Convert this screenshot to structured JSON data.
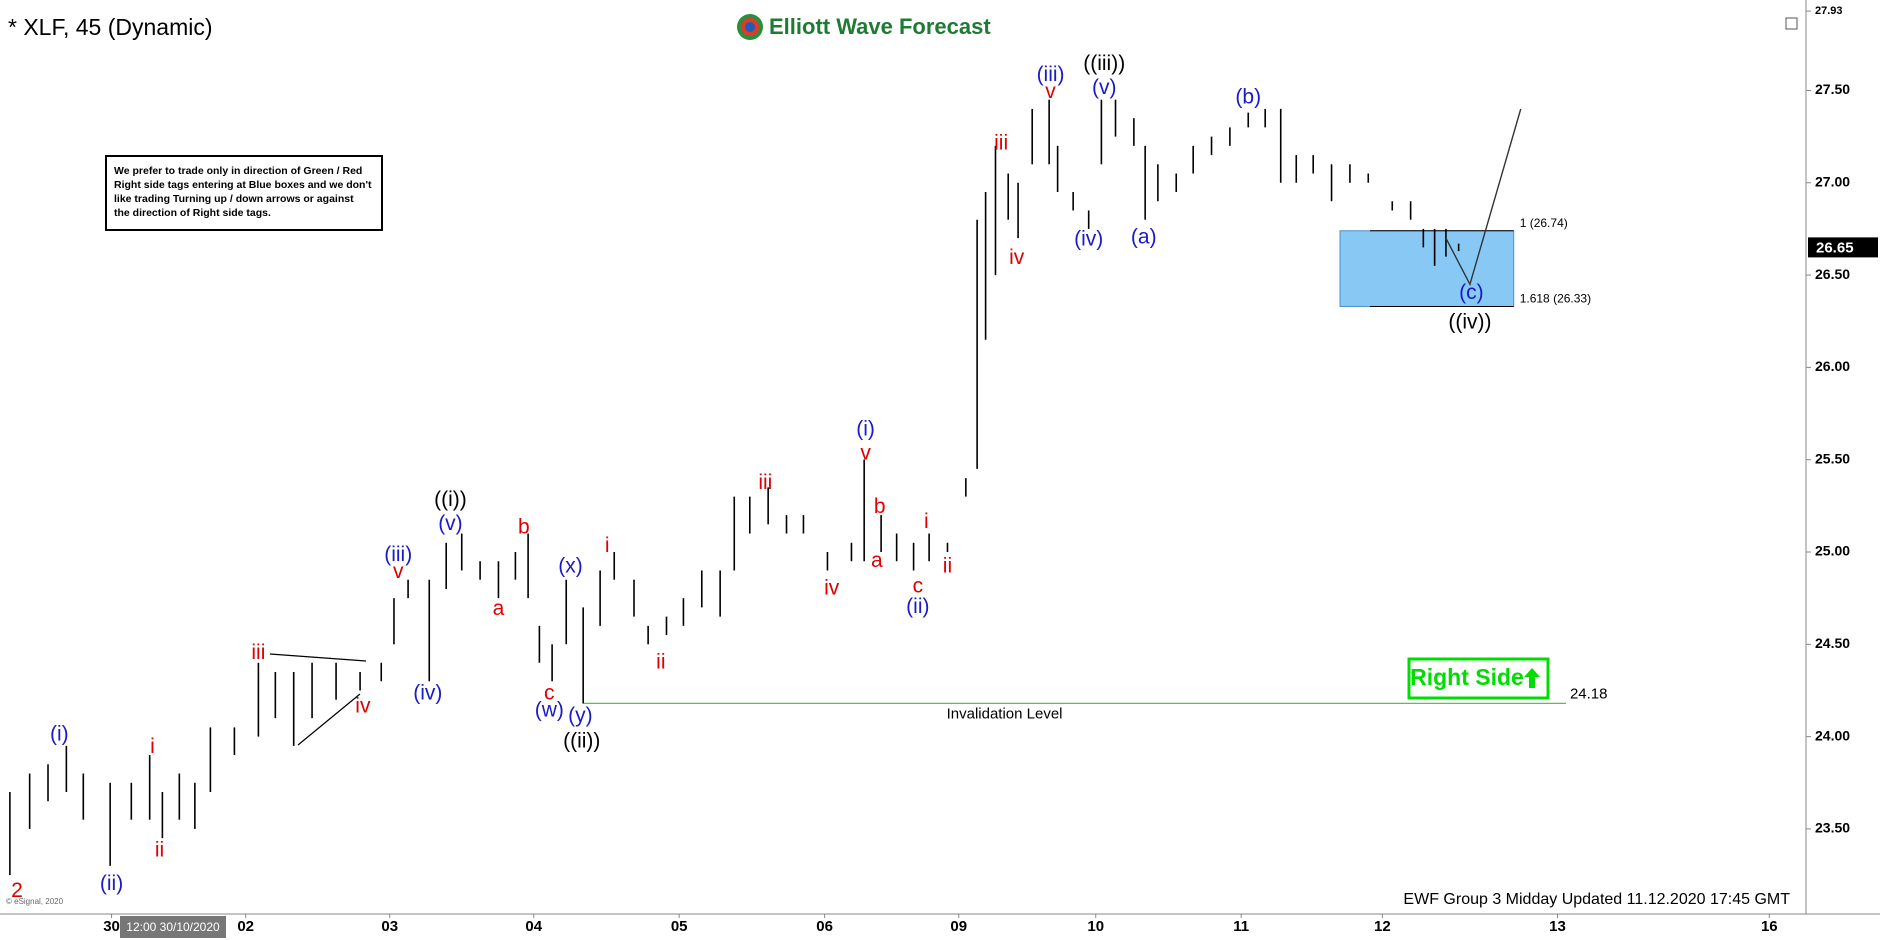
{
  "chart_data": {
    "type": "ohlc",
    "title": "* XLF, 45 (Dynamic)",
    "brand": "Elliott Wave Forecast",
    "color": "#000000",
    "x": [
      -0.72,
      -0.58,
      -0.45,
      -0.32,
      -0.2,
      -0.01,
      0.14,
      0.27,
      0.36,
      0.48,
      0.59,
      0.7,
      0.87,
      1.04,
      1.16,
      1.29,
      1.42,
      1.59,
      1.76,
      1.91,
      2.0,
      2.1,
      2.25,
      2.37,
      2.48,
      2.61,
      2.74,
      2.86,
      2.95,
      3.03,
      3.12,
      3.22,
      3.34,
      3.46,
      3.56,
      3.7,
      3.8,
      3.93,
      4.05,
      4.18,
      4.31,
      4.41,
      4.52,
      4.65,
      4.78,
      4.9,
      5.07,
      5.24,
      5.33,
      5.45,
      5.56,
      5.68,
      5.79,
      5.92,
      6.05,
      6.13,
      6.19,
      6.26,
      6.35,
      6.42,
      6.52,
      6.64,
      6.7,
      6.81,
      6.92,
      7.01,
      7.11,
      7.24,
      7.32,
      7.41,
      7.54,
      7.66,
      7.79,
      7.92,
      8.05,
      8.17,
      8.28,
      8.39,
      8.51,
      8.64,
      8.77,
      8.9,
      9.07,
      9.2,
      9.29,
      9.37,
      9.45,
      9.54
    ],
    "high": [
      23.7,
      23.8,
      23.85,
      23.95,
      23.8,
      23.75,
      23.75,
      23.9,
      23.7,
      23.8,
      23.75,
      24.05,
      24.05,
      24.4,
      24.35,
      24.35,
      24.4,
      24.4,
      24.35,
      24.4,
      24.75,
      24.85,
      24.85,
      25.05,
      25.1,
      24.95,
      24.95,
      25.0,
      25.1,
      24.6,
      24.5,
      24.85,
      24.7,
      24.9,
      25.0,
      24.85,
      24.6,
      24.65,
      24.75,
      24.9,
      24.9,
      25.3,
      25.3,
      25.35,
      25.2,
      25.2,
      25.0,
      25.05,
      25.5,
      25.2,
      25.1,
      25.05,
      25.1,
      25.05,
      25.4,
      26.8,
      26.95,
      27.2,
      27.05,
      27.0,
      27.4,
      27.45,
      27.2,
      26.95,
      26.85,
      27.45,
      27.45,
      27.35,
      27.2,
      27.1,
      27.05,
      27.2,
      27.25,
      27.3,
      27.38,
      27.4,
      27.4,
      27.15,
      27.15,
      27.1,
      27.1,
      27.05,
      26.9,
      26.9,
      26.75,
      26.75,
      26.75,
      26.67
    ],
    "low": [
      23.25,
      23.5,
      23.65,
      23.7,
      23.55,
      23.3,
      23.55,
      23.55,
      23.45,
      23.55,
      23.5,
      23.7,
      23.9,
      24.0,
      24.1,
      23.95,
      24.1,
      24.2,
      24.25,
      24.3,
      24.5,
      24.75,
      24.3,
      24.8,
      24.9,
      24.85,
      24.75,
      24.85,
      24.75,
      24.4,
      24.3,
      24.5,
      24.18,
      24.6,
      24.85,
      24.65,
      24.5,
      24.55,
      24.6,
      24.7,
      24.65,
      24.9,
      25.1,
      25.15,
      25.1,
      25.1,
      24.9,
      24.95,
      24.95,
      25.0,
      24.95,
      24.9,
      24.95,
      25.0,
      25.3,
      25.45,
      26.15,
      26.5,
      26.8,
      26.7,
      27.1,
      27.1,
      26.95,
      26.85,
      26.75,
      27.1,
      27.25,
      27.2,
      26.8,
      26.9,
      26.95,
      27.05,
      27.15,
      27.2,
      27.3,
      27.3,
      27.0,
      27.0,
      27.05,
      26.9,
      27.0,
      27.0,
      26.85,
      26.8,
      26.65,
      26.55,
      26.6,
      26.63
    ],
    "xlim": [
      -0.79,
      12.0
    ],
    "ylim": [
      23.05,
      27.99
    ],
    "xticks": [
      {
        "value": 0,
        "label": "30"
      },
      {
        "value": 0.95,
        "label": "02"
      },
      {
        "value": 1.97,
        "label": "03"
      },
      {
        "value": 2.99,
        "label": "04"
      },
      {
        "value": 4.02,
        "label": "05"
      },
      {
        "value": 5.05,
        "label": "06"
      },
      {
        "value": 6,
        "label": "09"
      },
      {
        "value": 6.97,
        "label": "10"
      },
      {
        "value": 8,
        "label": "11"
      },
      {
        "value": 9,
        "label": "12"
      },
      {
        "value": 10.24,
        "label": "13"
      },
      {
        "value": 11.74,
        "label": "16"
      }
    ],
    "yticks": [
      {
        "value": 23.5,
        "label": "23.50"
      },
      {
        "value": 24,
        "label": "24.00"
      },
      {
        "value": 24.5,
        "label": "24.50"
      },
      {
        "value": 25,
        "label": "25.00"
      },
      {
        "value": 25.5,
        "label": "25.50"
      },
      {
        "value": 26,
        "label": "26.00"
      },
      {
        "value": 26.5,
        "label": "26.50"
      },
      {
        "value": 27,
        "label": "27.00"
      },
      {
        "value": 27.5,
        "label": "27.50"
      },
      27.93
    ],
    "last_price": 26.65,
    "crosshair_label": "12:00 30/10/2020",
    "annotations": [
      {
        "text": "2",
        "x": -0.67,
        "y": 23.16,
        "color": "#e00000"
      },
      {
        "text": "(i)",
        "x": -0.37,
        "y": 24.01,
        "color": "#1a1ac8"
      },
      {
        "text": "(ii)",
        "x": 0,
        "y": 23.2,
        "color": "#1a1ac8"
      },
      {
        "text": "i",
        "x": 0.29,
        "y": 23.94,
        "color": "#e00000"
      },
      {
        "text": "ii",
        "x": 0.34,
        "y": 23.38,
        "color": "#e00000"
      },
      {
        "text": "iii",
        "x": 1.04,
        "y": 24.45,
        "color": "#e00000"
      },
      {
        "text": "iv",
        "x": 1.78,
        "y": 24.16,
        "color": "#e00000"
      },
      {
        "text": "(iii)",
        "x": 2.03,
        "y": 24.98,
        "color": "#1a1ac8"
      },
      {
        "text": "v",
        "x": 2.03,
        "y": 24.89,
        "color": "#e00000"
      },
      {
        "text": "((i))",
        "x": 2.4,
        "y": 25.28,
        "color": "#000000"
      },
      {
        "text": "(v)",
        "x": 2.4,
        "y": 25.15,
        "color": "#1a1ac8"
      },
      {
        "text": "(iv)",
        "x": 2.24,
        "y": 24.23,
        "color": "#1a1ac8"
      },
      {
        "text": "b",
        "x": 2.92,
        "y": 25.13,
        "color": "#e00000"
      },
      {
        "text": "a",
        "x": 2.74,
        "y": 24.69,
        "color": "#e00000"
      },
      {
        "text": "c",
        "x": 3.1,
        "y": 24.23,
        "color": "#e00000"
      },
      {
        "text": "(w)",
        "x": 3.1,
        "y": 24.14,
        "color": "#1a1ac8"
      },
      {
        "text": "(x)",
        "x": 3.25,
        "y": 24.92,
        "color": "#1a1ac8"
      },
      {
        "text": "(y)",
        "x": 3.32,
        "y": 24.11,
        "color": "#1a1ac8"
      },
      {
        "text": "((ii))",
        "x": 3.33,
        "y": 23.97,
        "color": "#000000"
      },
      {
        "text": "i",
        "x": 3.51,
        "y": 25.03,
        "color": "#e00000"
      },
      {
        "text": "ii",
        "x": 3.89,
        "y": 24.4,
        "color": "#e00000"
      },
      {
        "text": "iii",
        "x": 4.63,
        "y": 25.37,
        "color": "#e00000"
      },
      {
        "text": "iv",
        "x": 5.1,
        "y": 24.8,
        "color": "#e00000"
      },
      {
        "text": "(i)",
        "x": 5.34,
        "y": 25.66,
        "color": "#1a1ac8"
      },
      {
        "text": "v",
        "x": 5.34,
        "y": 25.53,
        "color": "#e00000"
      },
      {
        "text": "b",
        "x": 5.44,
        "y": 25.24,
        "color": "#e00000"
      },
      {
        "text": "a",
        "x": 5.42,
        "y": 24.95,
        "color": "#e00000"
      },
      {
        "text": "c",
        "x": 5.71,
        "y": 24.81,
        "color": "#e00000"
      },
      {
        "text": "(ii)",
        "x": 5.71,
        "y": 24.7,
        "color": "#1a1ac8"
      },
      {
        "text": "i",
        "x": 5.77,
        "y": 25.16,
        "color": "#e00000"
      },
      {
        "text": "ii",
        "x": 5.92,
        "y": 24.92,
        "color": "#e00000"
      },
      {
        "text": "iii",
        "x": 6.3,
        "y": 27.21,
        "color": "#e00000"
      },
      {
        "text": "iv",
        "x": 6.41,
        "y": 26.59,
        "color": "#e00000"
      },
      {
        "text": "(iii)",
        "x": 6.65,
        "y": 27.58,
        "color": "#1a1ac8"
      },
      {
        "text": "v",
        "x": 6.65,
        "y": 27.49,
        "color": "#e00000"
      },
      {
        "text": "((iii))",
        "x": 7.03,
        "y": 27.64,
        "color": "#000000"
      },
      {
        "text": "(v)",
        "x": 7.03,
        "y": 27.51,
        "color": "#1a1ac8"
      },
      {
        "text": "(iv)",
        "x": 6.92,
        "y": 26.69,
        "color": "#1a1ac8"
      },
      {
        "text": "(a)",
        "x": 7.31,
        "y": 26.7,
        "color": "#1a1ac8"
      },
      {
        "text": "(b)",
        "x": 8.05,
        "y": 27.46,
        "color": "#1a1ac8"
      },
      {
        "text": "(c)",
        "x": 9.63,
        "y": 26.4,
        "color": "#1a1ac8"
      },
      {
        "text": "((iv))",
        "x": 9.62,
        "y": 26.24,
        "color": "#000000"
      }
    ],
    "note": [
      "We prefer to trade only in direction of Green / Red",
      "Right side tags entering at Blue boxes and we don't",
      "like trading Turning up / down arrows or against",
      "the direction of Right side tags."
    ],
    "box_x": [
      8.7,
      9.93
    ],
    "box_color": "#87c8f5",
    "fib_levels": [
      {
        "value": 26.74,
        "label": "1 (26.74)"
      },
      {
        "value": 26.33,
        "label": "1.618 (26.33)"
      }
    ],
    "projection": {
      "x": [
        9.45,
        9.62,
        9.98
      ],
      "y": [
        26.7,
        26.45,
        27.4
      ]
    },
    "invalidation": {
      "value": 24.18,
      "label": "Invalidation Level",
      "x": [
        3.34,
        10.3
      ],
      "color": "#44cc44"
    },
    "right_side": "Right Side",
    "right_side_color": "#00dd00",
    "footer": "EWF Group 3 Midday Updated 11.12.2020 17:45 GMT",
    "copyright": "© eSignal, 2020"
  }
}
